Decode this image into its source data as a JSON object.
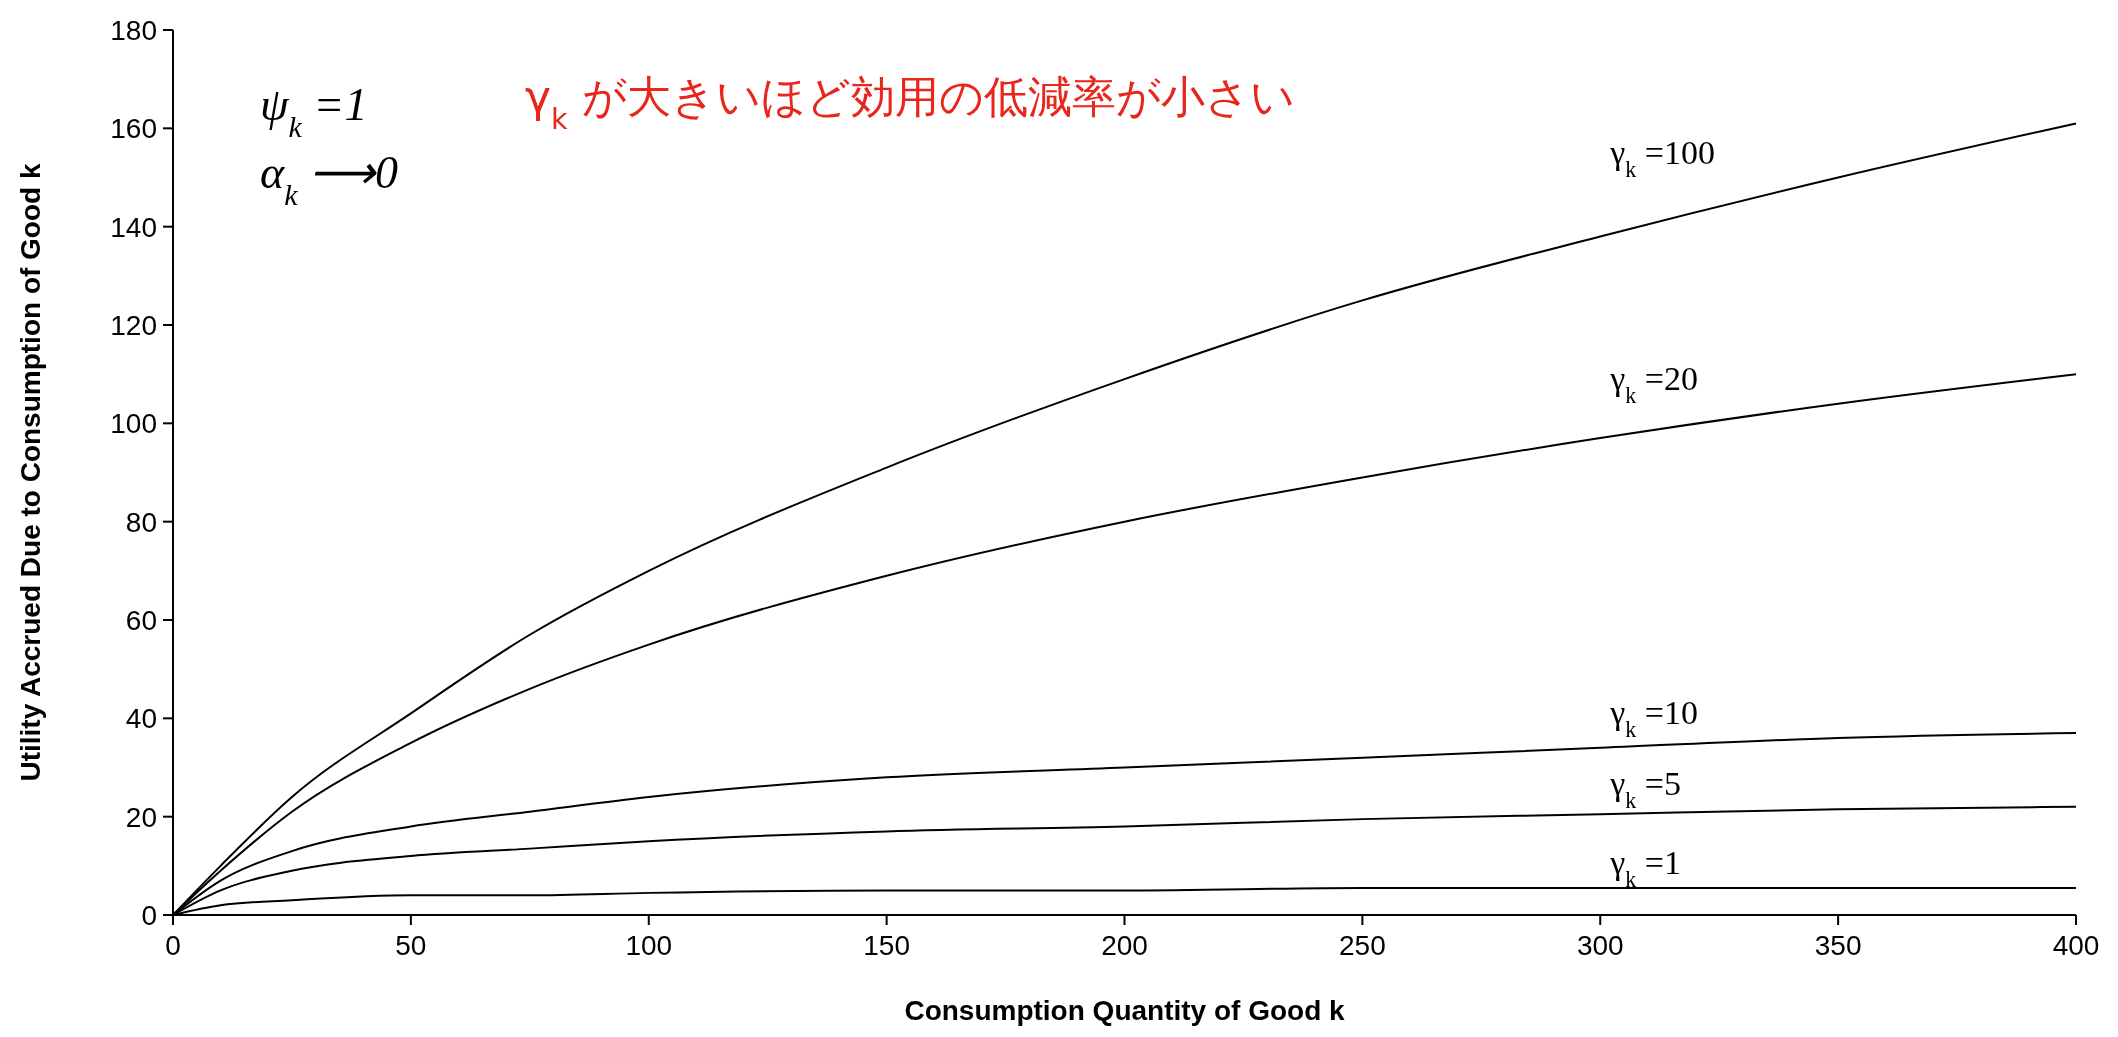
{
  "chart_data": {
    "type": "line",
    "xlabel": "Consumption Quantity of Good k",
    "ylabel": "Utility Accrued Due to Consumption of Good k",
    "x": [
      0,
      10,
      25,
      50,
      75,
      100,
      150,
      200,
      250,
      300,
      350,
      400
    ],
    "series": [
      {
        "name": "γ$_{k}$ =100",
        "color": "#000000",
        "values": [
          0,
          10,
          24,
          41,
          57,
          70,
          91,
          109,
          125,
          138,
          150,
          161
        ]
      },
      {
        "name": "γ$_{k}$ =20",
        "color": "#000000",
        "values": [
          0,
          9,
          21,
          35,
          46,
          55,
          69,
          80,
          89,
          97,
          104,
          110
        ]
      },
      {
        "name": "γ$_{k}$ =10",
        "color": "#000000",
        "values": [
          0,
          7,
          13,
          18,
          21,
          24,
          28,
          30,
          32,
          34,
          36,
          37
        ]
      },
      {
        "name": "γ$_{k}$ =5",
        "color": "#000000",
        "values": [
          0,
          5,
          9,
          12,
          13.5,
          15,
          17,
          18,
          19.5,
          20.5,
          21.5,
          22
        ]
      },
      {
        "name": "γ$_{k}$ =1",
        "color": "#000000",
        "values": [
          0,
          2,
          3,
          4,
          4,
          4.5,
          5,
          5,
          5.5,
          5.5,
          5.5,
          5.5
        ]
      }
    ],
    "annotations": [
      "ψ$_{k}$ =1",
      "α$_{k}$ ⟶0",
      "γ$_{k}$ が大きいほど効用の低減率が小さい"
    ],
    "xlim": [
      0,
      400
    ],
    "xticks": [
      0,
      50,
      100,
      150,
      200,
      250,
      300,
      350,
      400
    ],
    "ylim": [
      0,
      180
    ],
    "yticks": [
      0,
      20,
      40,
      60,
      80,
      100,
      120,
      140,
      160,
      180
    ],
    "grid": false,
    "marker": "none",
    "line_style": "solid"
  }
}
